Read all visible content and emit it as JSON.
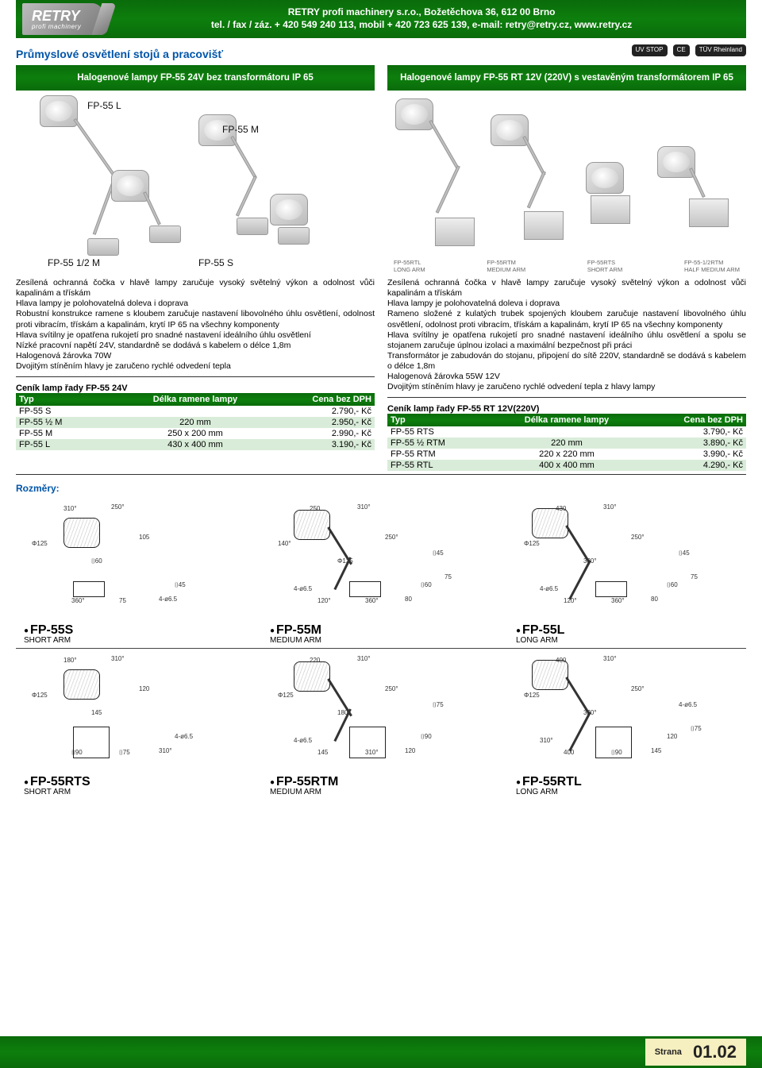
{
  "header": {
    "logo_main": "RETRY",
    "logo_sub": "profi machinery",
    "company_line1": "RETRY profi machinery s.r.o., Božetěchova 36, 612 00 Brno",
    "company_line2": "tel. / fax / záz. + 420 549 240 113, mobil + 420 723 625 139, e-mail: retry@retry.cz, www.retry.cz"
  },
  "section_title": "Průmyslové osvětlení stojů a pracovišť",
  "certs": [
    "UV STOP",
    "CE",
    "TÜV Rheinland"
  ],
  "left": {
    "green": "Halogenové lampy FP-55 24V bez transformátoru   IP 65",
    "models": {
      "a": "FP-55 L",
      "b": "FP-55 M",
      "c": "FP-55 1/2 M",
      "d": "FP-55 S"
    },
    "desc": "Zesílená ochranná čočka v hlavě lampy zaručuje vysoký světelný výkon a odolnost vůči kapalinám a třískám\nHlava lampy je polohovatelná doleva i doprava\nRobustní konstrukce ramene s kloubem zaručuje nastavení libovolného úhlu osvětlení, odolnost proti vibracím, třískám a kapalinám, krytí IP 65 na všechny komponenty\nHlava svítilny je opatřena rukojetí pro snadné nastavení ideálního úhlu osvětlení\nNízké pracovní napětí 24V, standardně se dodává s kabelem o délce 1,8m\nHalogenová žárovka 70W\nDvojitým stíněním hlavy je zaručeno rychlé odvedení tepla",
    "price_title": "Ceník lamp řady FP-55 24V",
    "head": {
      "c1": "Typ",
      "c2": "Délka ramene lampy",
      "c3": "Cena bez DPH"
    },
    "rows": [
      {
        "c1": "FP-55 S",
        "c2": "",
        "c3": "2.790,- Kč"
      },
      {
        "c1": "FP-55 ½ M",
        "c2": "220 mm",
        "c3": "2.950,- Kč"
      },
      {
        "c1": "FP-55 M",
        "c2": "250 x 200 mm",
        "c3": "2.990,- Kč"
      },
      {
        "c1": "FP-55 L",
        "c2": "430 x 400 mm",
        "c3": "3.190,- Kč"
      }
    ]
  },
  "right": {
    "green": "Halogenové lampy FP-55 RT 12V (220V) s  vestavěným transformátorem   IP 65",
    "caps": [
      {
        "m": "FP-55RTL",
        "s": "LONG ARM"
      },
      {
        "m": "FP-55RTM",
        "s": "MEDIUM ARM"
      },
      {
        "m": "FP-55RTS",
        "s": "SHORT ARM"
      },
      {
        "m": "FP-55-1/2RTM",
        "s": "HALF MEDIUM ARM"
      }
    ],
    "desc": "Zesílená ochranná čočka v hlavě lampy zaručuje vysoký světelný výkon a odolnost vůči kapalinám a třískám\nHlava lampy je polohovatelná doleva i doprava\nRameno složené z kulatých trubek spojených kloubem zaručuje nastavení libovolného úhlu osvětlení, odolnost proti vibracím, třískám a kapalinám, krytí IP 65 na všechny komponenty\nHlava svítilny je opatřena rukojetí pro snadné nastavení ideálního úhlu osvětlení a spolu se stojanem zaručuje úplnou izolaci a maximální bezpečnost při práci\nTransformátor je zabudován do stojanu, připojení do sítě 220V, standardně se dodává s kabelem o délce 1,8m\nHalogenová žárovka 55W 12V\nDvojitým stíněním hlavy je zaručeno rychlé odvedení tepla z hlavy lampy",
    "price_title": "Ceník lamp řady FP-55 RT 12V(220V)",
    "head": {
      "c1": "Typ",
      "c2": "Délka ramene lampy",
      "c3": "Cena bez DPH"
    },
    "rows": [
      {
        "c1": "FP-55 RTS",
        "c2": "",
        "c3": "3.790,- Kč"
      },
      {
        "c1": "FP-55 ½ RTM",
        "c2": "220 mm",
        "c3": "3.890,- Kč"
      },
      {
        "c1": "FP-55 RTM",
        "c2": "220 x 220 mm",
        "c3": "3.990,- Kč"
      },
      {
        "c1": "FP-55 RTL",
        "c2": "400 x 400 mm",
        "c3": "4.290,- Kč"
      }
    ]
  },
  "dims_title": "Rozměry:",
  "dims_row1": [
    {
      "label": "FP-55S",
      "sub": "SHORT ARM",
      "notes": [
        "250°",
        "310°",
        "Φ125",
        "105",
        "⌷60",
        "360°",
        "4-ø6.5",
        "⌷45",
        "75"
      ]
    },
    {
      "label": "FP-55M",
      "sub": "MEDIUM ARM",
      "notes": [
        "310°",
        "250",
        "140°",
        "250°",
        "Φ125",
        "120°",
        "80",
        "⌷60",
        "360°",
        "4-ø6.5",
        "⌷45",
        "75"
      ]
    },
    {
      "label": "FP-55L",
      "sub": "LONG ARM",
      "notes": [
        "310°",
        "430",
        "Φ125",
        "250°",
        "330°",
        "120°",
        "80",
        "⌷60",
        "360°",
        "4-ø6.5",
        "⌷45",
        "75"
      ]
    }
  ],
  "dims_row2": [
    {
      "label": "FP-55RTS",
      "sub": "SHORT ARM",
      "notes": [
        "310°",
        "180°",
        "Φ125",
        "120",
        "145",
        "⌷90",
        "310°",
        "4-ø6.5",
        "⌷75"
      ]
    },
    {
      "label": "FP-55RTM",
      "sub": "MEDIUM ARM",
      "notes": [
        "310°",
        "220",
        "Φ125",
        "250°",
        "180°",
        "145",
        "120",
        "⌷90",
        "310°",
        "4-ø6.5",
        "⌷75"
      ]
    },
    {
      "label": "FP-55RTL",
      "sub": "LONG ARM",
      "notes": [
        "310°",
        "400",
        "Φ125",
        "250°",
        "320°",
        "400",
        "145",
        "120",
        "⌷90",
        "310°",
        "4-ø6.5",
        "⌷75"
      ]
    }
  ],
  "footer": {
    "label": "Strana",
    "page": "01.02"
  },
  "colors": {
    "green_band": "#0d7f0d",
    "alt_row": "#d9ecd9",
    "link_blue": "#0055aa",
    "footer_tag": "#f6efbf"
  }
}
